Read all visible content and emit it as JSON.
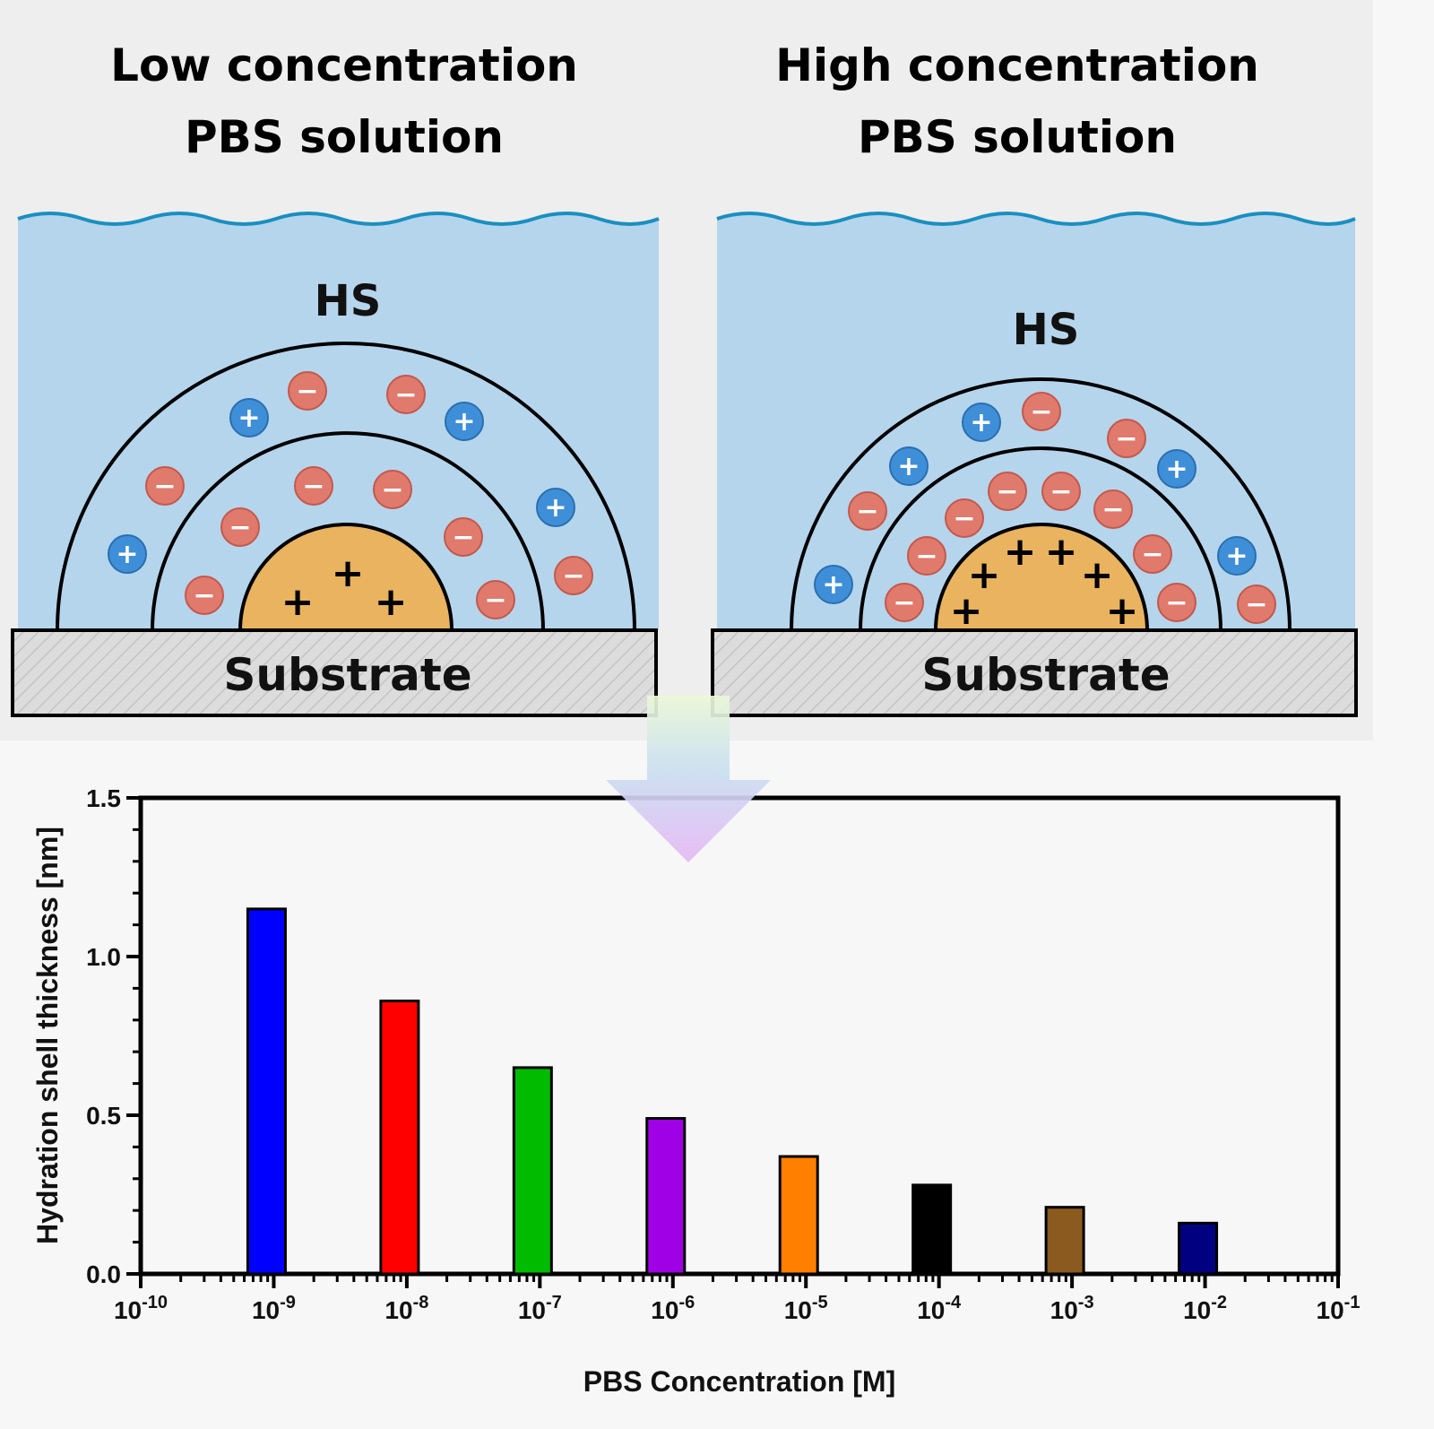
{
  "panels": [
    {
      "title_line1": "Low concentration",
      "title_line2": "PBS solution",
      "hs_label": "HS",
      "substrate_label": "Substrate",
      "core_signs": [
        "+",
        "+",
        "+"
      ],
      "ion_signs": {
        "positive": "+",
        "negative": "−"
      }
    },
    {
      "title_line1": "High concentration",
      "title_line2": "PBS solution",
      "hs_label": "HS",
      "substrate_label": "Substrate",
      "core_signs": [
        "+",
        "+",
        "+",
        "+",
        "+",
        "+"
      ],
      "ion_signs": {
        "positive": "+",
        "negative": "−"
      }
    }
  ],
  "colors": {
    "water": "#b5d5ec",
    "wave": "#1a8fc0",
    "core": "#e9b35f",
    "negative_ion": "#e07a6c",
    "positive_ion": "#3f8fd8",
    "substrate": "#dcdcdc",
    "panel_bg": "#eeeeee"
  },
  "chart_data": {
    "type": "bar",
    "x_scale": "log",
    "xlabel": "PBS Concentration [M]",
    "ylabel": "Hydration shell thickness [nm]",
    "ylim": [
      0.0,
      1.5
    ],
    "xlim": [
      1e-10,
      0.1
    ],
    "y_ticks": [
      "0.0",
      "0.5",
      "1.0",
      "1.5"
    ],
    "x_ticks": [
      {
        "base": "10",
        "exp": "-10"
      },
      {
        "base": "10",
        "exp": "-9"
      },
      {
        "base": "10",
        "exp": "-8"
      },
      {
        "base": "10",
        "exp": "-7"
      },
      {
        "base": "10",
        "exp": "-6"
      },
      {
        "base": "10",
        "exp": "-5"
      },
      {
        "base": "10",
        "exp": "-4"
      },
      {
        "base": "10",
        "exp": "-3"
      },
      {
        "base": "10",
        "exp": "-2"
      },
      {
        "base": "10",
        "exp": "-1"
      }
    ],
    "x": [
      1e-09,
      1e-08,
      1e-07,
      1e-06,
      1e-05,
      0.0001,
      0.001,
      0.01
    ],
    "values": [
      1.15,
      0.86,
      0.65,
      0.49,
      0.37,
      0.28,
      0.21,
      0.16
    ],
    "bar_colors": [
      "#0000ff",
      "#ff0000",
      "#00bb00",
      "#a000e6",
      "#ff7f00",
      "#000000",
      "#8b5a1e",
      "#000080"
    ]
  }
}
